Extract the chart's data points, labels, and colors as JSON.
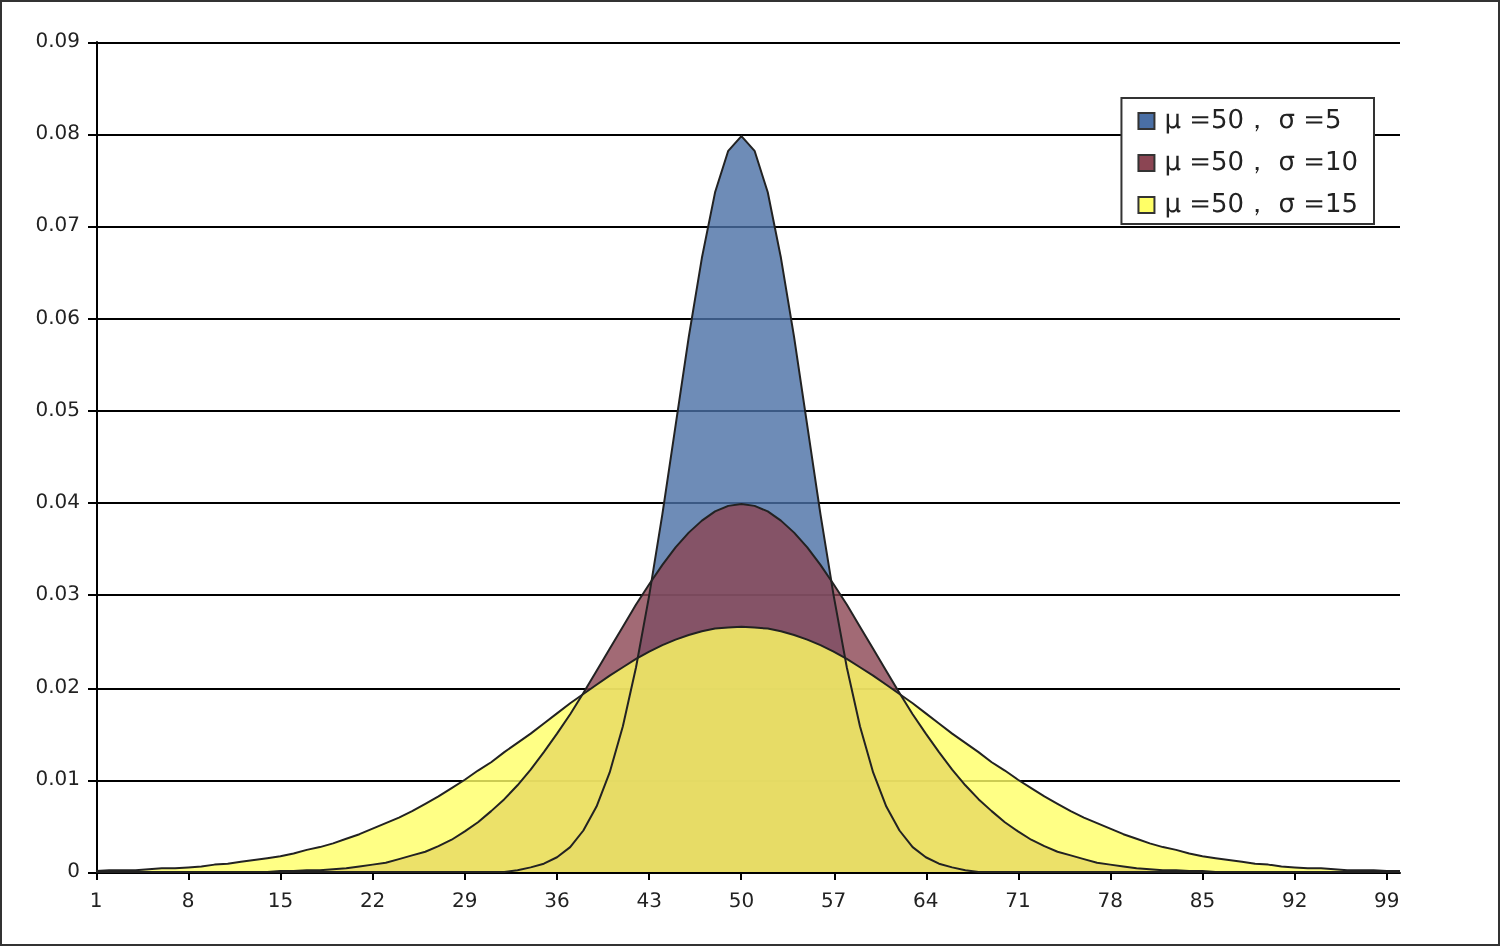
{
  "chart_data": {
    "type": "area",
    "categories": [
      "1",
      null,
      null,
      null,
      null,
      null,
      null,
      "8",
      null,
      null,
      null,
      null,
      null,
      null,
      "15",
      null,
      null,
      null,
      null,
      null,
      null,
      "22",
      null,
      null,
      null,
      null,
      null,
      null,
      "29",
      null,
      null,
      null,
      null,
      null,
      null,
      "36",
      null,
      null,
      null,
      null,
      null,
      null,
      "43",
      null,
      null,
      null,
      null,
      null,
      null,
      "50",
      null,
      null,
      null,
      null,
      null,
      null,
      "57",
      null,
      null,
      null,
      null,
      null,
      null,
      "64",
      null,
      null,
      null,
      null,
      null,
      null,
      "71",
      null,
      null,
      null,
      null,
      null,
      null,
      "78",
      null,
      null,
      null,
      null,
      null,
      null,
      "85",
      null,
      null,
      null,
      null,
      null,
      null,
      "92",
      null,
      null,
      null,
      null,
      null,
      null,
      "99",
      null
    ],
    "series": [
      {
        "name": "μ =50， σ =5",
        "color": "#4a6fa5",
        "values": [
          0,
          0,
          0,
          0,
          0,
          0,
          0,
          0,
          0,
          0,
          0,
          0,
          0,
          0,
          0,
          0,
          0,
          0,
          0,
          0,
          0,
          0,
          0,
          0,
          0,
          0,
          0,
          0,
          0,
          0,
          0,
          0,
          0.0002,
          0.0005,
          0.0009,
          0.0016,
          0.0027,
          0.0045,
          0.0071,
          0.0108,
          0.0158,
          0.0222,
          0.03,
          0.0388,
          0.0484,
          0.058,
          0.0666,
          0.0737,
          0.0782,
          0.0798,
          0.0782,
          0.0737,
          0.0666,
          0.058,
          0.0484,
          0.0388,
          0.03,
          0.0222,
          0.0158,
          0.0108,
          0.0071,
          0.0045,
          0.0027,
          0.0016,
          0.0009,
          0.0005,
          0.0002,
          0,
          0,
          0,
          0,
          0,
          0,
          0,
          0,
          0,
          0,
          0,
          0,
          0,
          0,
          0,
          0,
          0,
          0,
          0,
          0,
          0,
          0,
          0,
          0,
          0,
          0,
          0,
          0,
          0,
          0,
          0,
          0,
          0
        ]
      },
      {
        "name": "μ =50， σ =10",
        "color": "#8b4553",
        "values": [
          0,
          0,
          0,
          0,
          0,
          0,
          0,
          0,
          0,
          0,
          0,
          0,
          0,
          0,
          0.0001,
          0.0001,
          0.0002,
          0.0002,
          0.0003,
          0.0004,
          0.0006,
          0.0008,
          0.001,
          0.0014,
          0.0018,
          0.0022,
          0.0028,
          0.0035,
          0.0044,
          0.0054,
          0.0066,
          0.0079,
          0.0094,
          0.0111,
          0.013,
          0.015,
          0.0171,
          0.0194,
          0.0218,
          0.0242,
          0.0266,
          0.029,
          0.0312,
          0.0333,
          0.0352,
          0.0368,
          0.0381,
          0.0391,
          0.0397,
          0.0399,
          0.0397,
          0.0391,
          0.0381,
          0.0368,
          0.0352,
          0.0333,
          0.0312,
          0.029,
          0.0266,
          0.0242,
          0.0218,
          0.0194,
          0.0171,
          0.015,
          0.013,
          0.0111,
          0.0094,
          0.0079,
          0.0066,
          0.0054,
          0.0044,
          0.0035,
          0.0028,
          0.0022,
          0.0018,
          0.0014,
          0.001,
          0.0008,
          0.0006,
          0.0004,
          0.0003,
          0.0002,
          0.0002,
          0.0001,
          0.0001,
          0,
          0,
          0,
          0,
          0,
          0,
          0,
          0,
          0,
          0,
          0,
          0,
          0,
          0,
          0
        ]
      },
      {
        "name": "μ =50， σ =15",
        "color": "#ffff66",
        "values": [
          0.0001,
          0.0002,
          0.0002,
          0.0002,
          0.0003,
          0.0004,
          0.0004,
          0.0005,
          0.0006,
          0.0008,
          0.0009,
          0.0011,
          0.0013,
          0.0015,
          0.0017,
          0.002,
          0.0024,
          0.0027,
          0.0031,
          0.0036,
          0.0041,
          0.0047,
          0.0053,
          0.0059,
          0.0066,
          0.0074,
          0.0082,
          0.0091,
          0.01,
          0.011,
          0.0119,
          0.013,
          0.014,
          0.015,
          0.0161,
          0.0172,
          0.0183,
          0.0193,
          0.0203,
          0.0213,
          0.0222,
          0.0231,
          0.0239,
          0.0246,
          0.0252,
          0.0257,
          0.0261,
          0.0264,
          0.0265,
          0.0266,
          0.0265,
          0.0264,
          0.0261,
          0.0257,
          0.0252,
          0.0246,
          0.0239,
          0.0231,
          0.0222,
          0.0213,
          0.0203,
          0.0193,
          0.0183,
          0.0172,
          0.0161,
          0.015,
          0.014,
          0.013,
          0.0119,
          0.011,
          0.01,
          0.0091,
          0.0082,
          0.0074,
          0.0066,
          0.0059,
          0.0053,
          0.0047,
          0.0041,
          0.0036,
          0.0031,
          0.0027,
          0.0024,
          0.002,
          0.0017,
          0.0015,
          0.0013,
          0.0011,
          0.0009,
          0.0008,
          0.0006,
          0.0005,
          0.0004,
          0.0004,
          0.0003,
          0.0002,
          0.0002,
          0.0002,
          0.0001,
          0.0001
        ]
      }
    ],
    "ylim": [
      0,
      0.09
    ],
    "yticks": [
      0,
      0.01,
      0.02,
      0.03,
      0.04,
      0.05,
      0.06,
      0.07,
      0.08,
      0.09
    ],
    "grid": "y",
    "legend": "top right"
  }
}
